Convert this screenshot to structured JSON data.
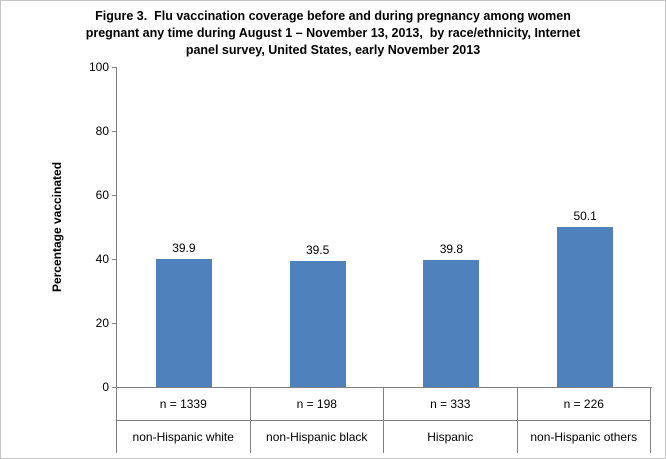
{
  "figure": {
    "title_lines": [
      "Figure 3.  Flu vaccination coverage before and during pregnancy among women",
      "pregnant any time during August 1 – November 13, 2013,  by race/ethnicity, Internet",
      "panel survey, United States, early November 2013"
    ]
  },
  "chart_data": {
    "type": "bar",
    "title": "Figure 3. Flu vaccination coverage before and during pregnancy among women pregnant any time during August 1 – November 13, 2013, by race/ethnicity, Internet panel survey, United States, early November 2013",
    "categories": [
      "non-Hispanic white",
      "non-Hispanic black",
      "Hispanic",
      "non-Hispanic others"
    ],
    "sample_sizes": [
      "n = 1339",
      "n = 198",
      "n = 333",
      "n = 226"
    ],
    "values": [
      39.9,
      39.5,
      39.8,
      50.1
    ],
    "value_labels": [
      "39.9",
      "39.5",
      "39.8",
      "50.1"
    ],
    "xlabel": "",
    "ylabel": "Percentage vaccinated",
    "ylim": [
      0,
      100
    ],
    "yticks": [
      0,
      20,
      40,
      60,
      80,
      100
    ],
    "bar_color": "#4F81BD",
    "grid": false,
    "legend": false
  }
}
